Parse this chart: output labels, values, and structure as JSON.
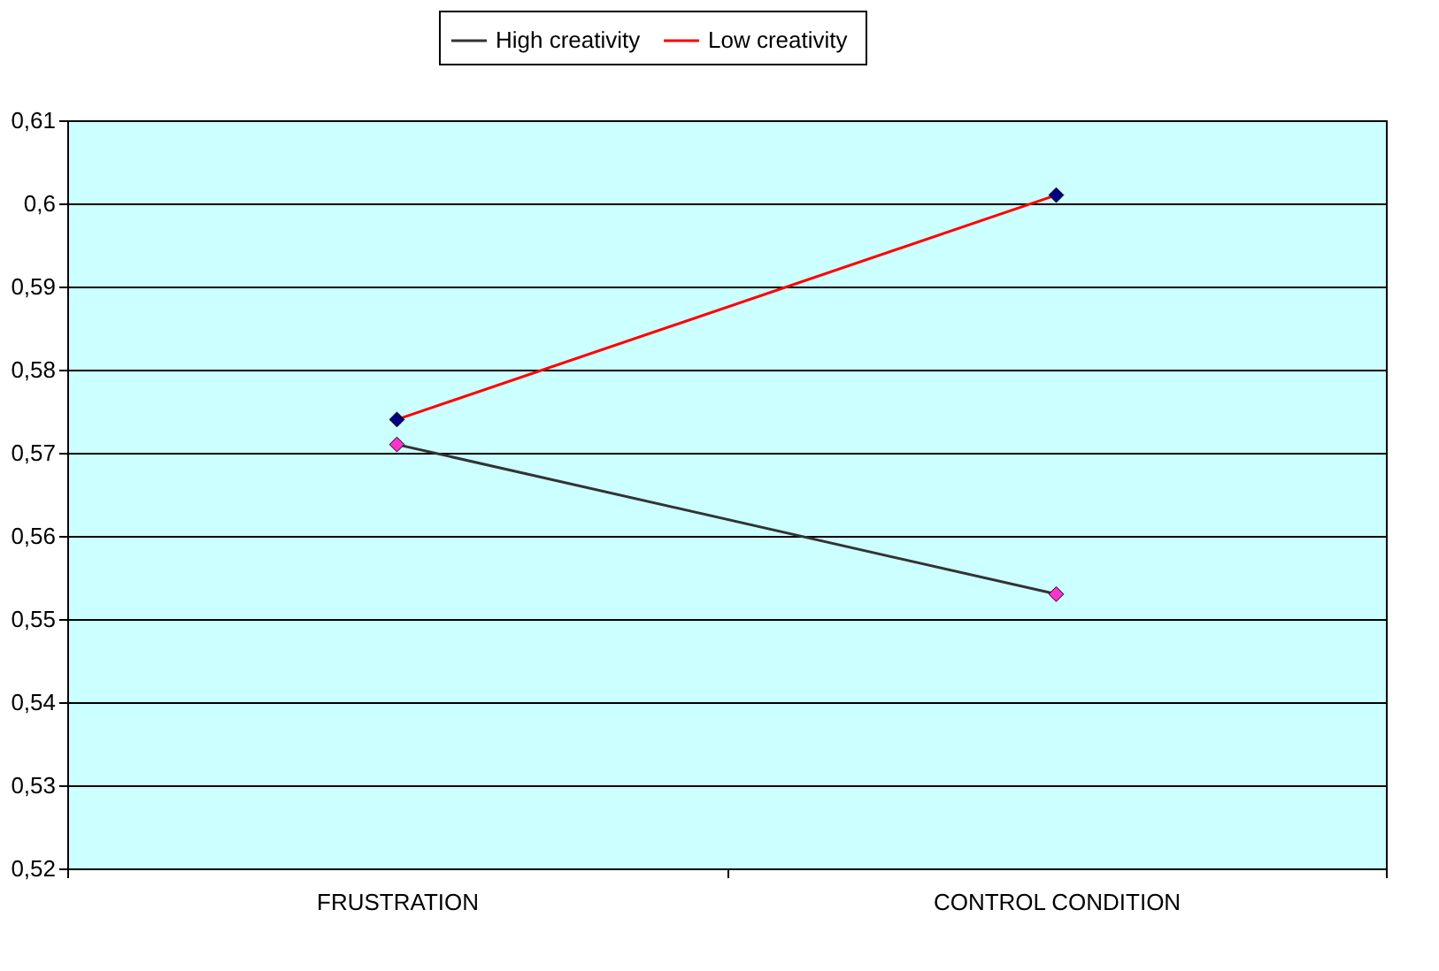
{
  "chart_data": {
    "type": "line",
    "categories": [
      "FRUSTRATION",
      "CONTROL CONDITION"
    ],
    "series": [
      {
        "name": "High creativity",
        "color": "#333333",
        "colors": [
          "#ff33cc",
          "#ff33cc"
        ],
        "values": [
          0.571,
          0.553
        ]
      },
      {
        "name": "Low  creativity",
        "color": "#ff0000",
        "colors": [
          "#000080",
          "#000080"
        ],
        "values": [
          0.574,
          0.601
        ]
      }
    ],
    "ylim": [
      0.52,
      0.61
    ],
    "yticks": [
      {
        "value": 0.52,
        "label": "0,52"
      },
      {
        "value": 0.53,
        "label": "0,53"
      },
      {
        "value": 0.54,
        "label": "0,54"
      },
      {
        "value": 0.55,
        "label": "0,55"
      },
      {
        "value": 0.56,
        "label": "0,56"
      },
      {
        "value": 0.57,
        "label": "0,57"
      },
      {
        "value": 0.58,
        "label": "0,58"
      },
      {
        "value": 0.59,
        "label": "0,59"
      },
      {
        "value": 0.6,
        "label": "0,6"
      },
      {
        "value": 0.61,
        "label": "0,61"
      }
    ],
    "grid": "y",
    "legend": "top",
    "marker": "diamond",
    "line_style": "solid"
  }
}
